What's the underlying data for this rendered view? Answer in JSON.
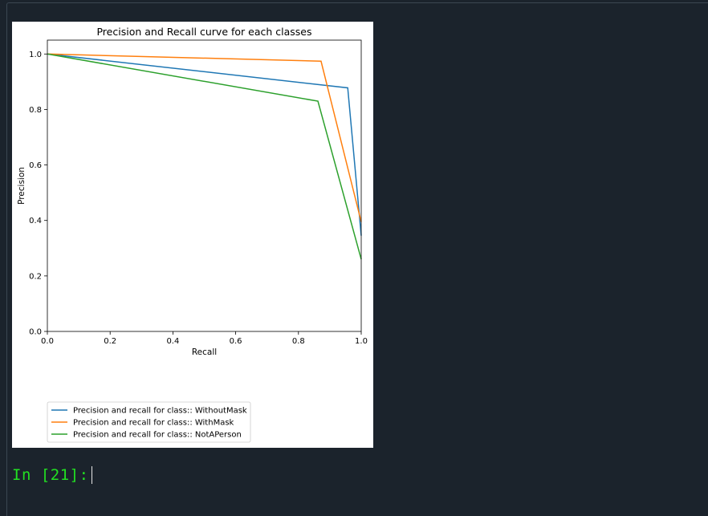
{
  "cell": {
    "prompt_label": "In [21]:"
  },
  "colors": {
    "background": "#1b232c",
    "prompt": "#22e022",
    "series_blue": "#1f77b4",
    "series_orange": "#ff7f0e",
    "series_green": "#2ca02c"
  },
  "chart_data": {
    "type": "line",
    "title": "Precision and Recall curve for each classes",
    "xlabel": "Recall",
    "ylabel": "Precision",
    "xlim": [
      0,
      1
    ],
    "ylim": [
      0,
      1.05
    ],
    "xticks": [
      "0.0",
      "0.2",
      "0.4",
      "0.6",
      "0.8",
      "1.0"
    ],
    "yticks": [
      "0.0",
      "0.2",
      "0.4",
      "0.6",
      "0.8",
      "1.0"
    ],
    "grid": false,
    "legend_placement": "below-axes",
    "series": [
      {
        "name": "Precision and recall for class:: WithoutMask",
        "color": "#1f77b4",
        "x": [
          0.0,
          0.957,
          1.0
        ],
        "y": [
          1.0,
          0.878,
          0.345
        ]
      },
      {
        "name": "Precision and recall for class:: WithMask",
        "color": "#ff7f0e",
        "x": [
          0.0,
          0.872,
          1.0
        ],
        "y": [
          1.0,
          0.974,
          0.395
        ]
      },
      {
        "name": "Precision and recall for class:: NotAPerson",
        "color": "#2ca02c",
        "x": [
          0.0,
          0.862,
          1.0
        ],
        "y": [
          1.0,
          0.83,
          0.26
        ]
      }
    ]
  }
}
